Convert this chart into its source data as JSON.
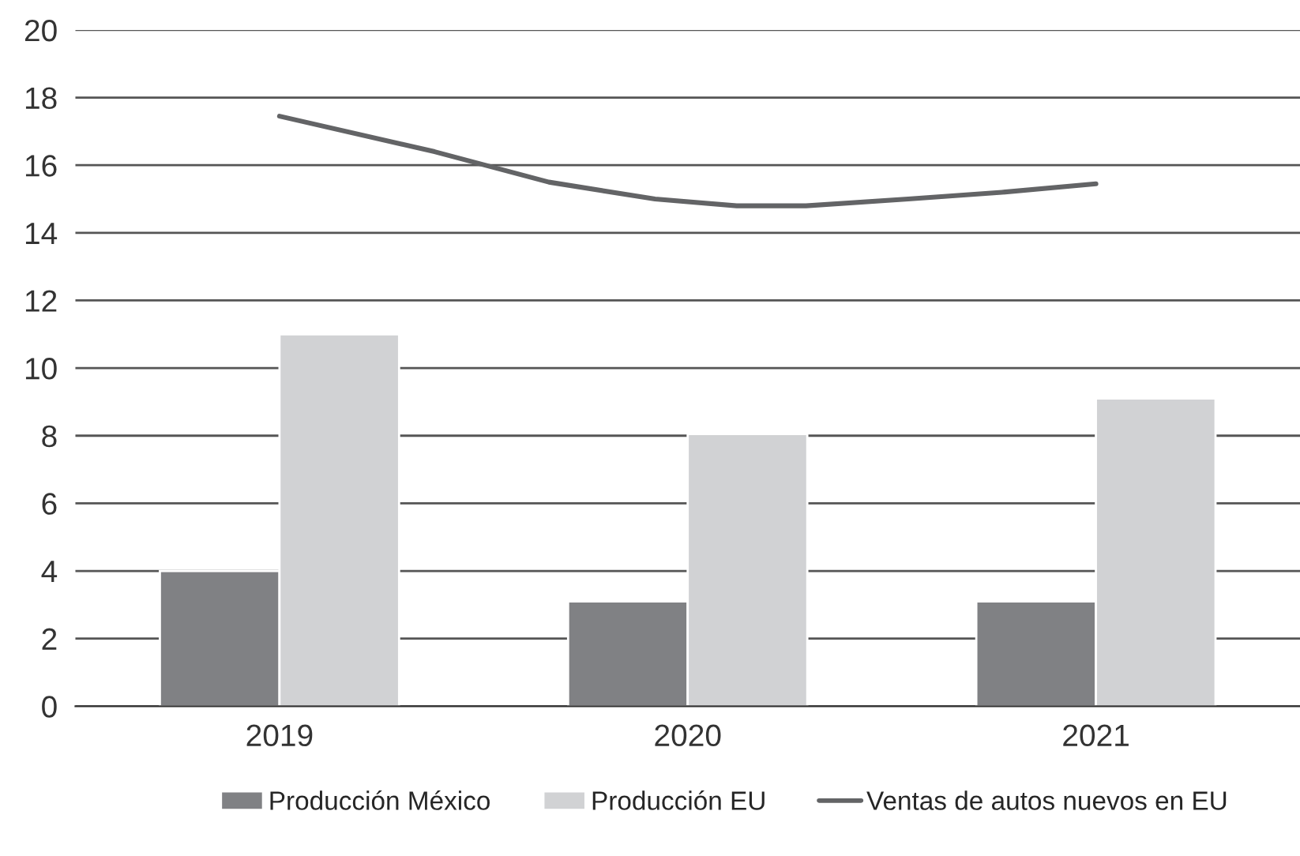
{
  "chart_data": {
    "type": "bar",
    "x": [
      2019,
      2020,
      2021
    ],
    "xlim": [
      2018.5,
      2021.5
    ],
    "xticks": [
      2019,
      2020,
      2021
    ],
    "ylim": [
      0,
      20
    ],
    "yticks": [
      0,
      2,
      4,
      6,
      8,
      10,
      12,
      14,
      16,
      18,
      20
    ],
    "grid": "y",
    "legend": "bottom",
    "series": [
      {
        "name": "Producción México",
        "color": "#808184",
        "values": [
          4,
          3.1,
          3.1
        ]
      },
      {
        "name": "Producción EU",
        "color": "#d1d2d4",
        "values": [
          11,
          8.05,
          9.1
        ]
      },
      {
        "name": "Ventas de autos nuevos en EU",
        "type": "line",
        "color": "#636466",
        "x": [
          2019,
          2019.38,
          2019.66,
          2019.92,
          2020.12,
          2020.29,
          2020.54,
          2020.77,
          2021
        ],
        "values": [
          17.45,
          16.4,
          15.5,
          15.0,
          14.8,
          14.8,
          15.0,
          15.2,
          15.45
        ]
      }
    ]
  }
}
